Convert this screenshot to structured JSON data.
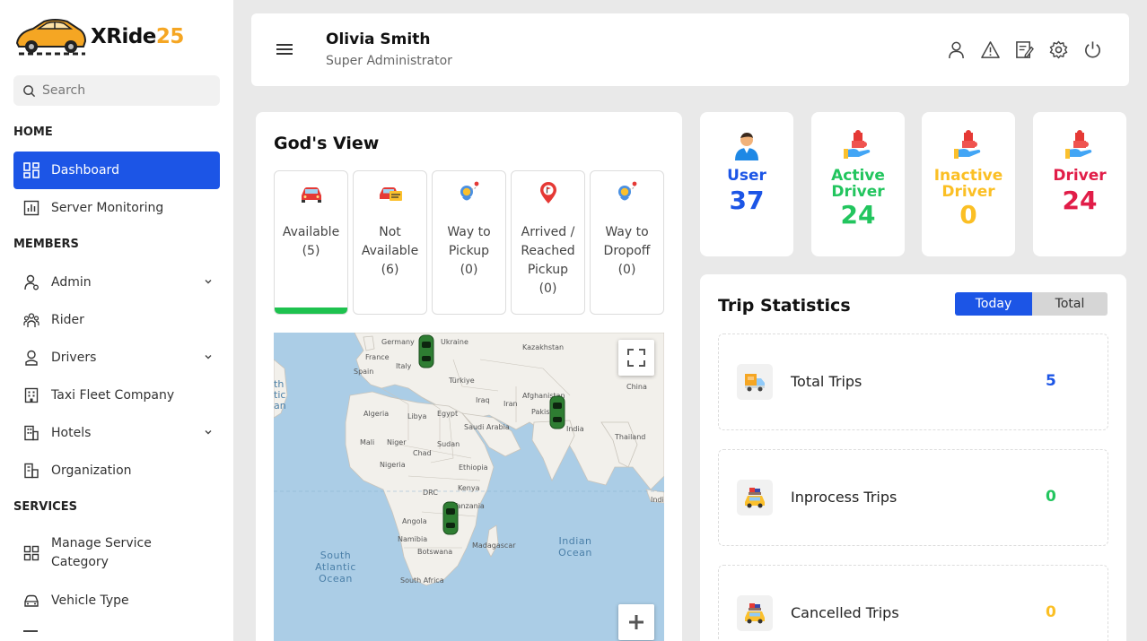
{
  "brand": {
    "name_main": "XRide",
    "name_num": "25",
    "accent": "#f5a623"
  },
  "search": {
    "placeholder": "Search"
  },
  "sidebar": {
    "sections": {
      "home": "HOME",
      "members": "MEMBERS",
      "services": "SERVICES"
    },
    "items": [
      {
        "label": "Dashboard",
        "icon": "dashboard-icon",
        "active": true
      },
      {
        "label": "Server Monitoring",
        "icon": "chart-icon"
      },
      {
        "label": "Admin",
        "icon": "user-gear-icon",
        "has_submenu": true
      },
      {
        "label": "Rider",
        "icon": "users-icon"
      },
      {
        "label": "Drivers",
        "icon": "driver-icon",
        "has_submenu": true
      },
      {
        "label": "Taxi Fleet Company",
        "icon": "building-icon"
      },
      {
        "label": "Hotels",
        "icon": "hotel-icon",
        "has_submenu": true
      },
      {
        "label": "Organization",
        "icon": "organization-icon"
      },
      {
        "label": "Manage Service Category",
        "icon": "grid-icon"
      },
      {
        "label": "Vehicle Type",
        "icon": "car-icon"
      }
    ]
  },
  "header": {
    "user_name": "Olivia Smith",
    "user_role": "Super Administrator",
    "icons": [
      "profile-icon",
      "alert-icon",
      "edit-icon",
      "settings-icon",
      "power-icon"
    ]
  },
  "gods_view": {
    "title": "God's View",
    "statuses": [
      {
        "label": "Available",
        "count": "(5)",
        "icon": "available-car-icon",
        "selected": true
      },
      {
        "label": "Not Available",
        "count": "(6)",
        "icon": "unavailable-car-icon"
      },
      {
        "label": "Way to Pickup",
        "count": "(0)",
        "icon": "pickup-route-icon"
      },
      {
        "label": "Arrived / Reached Pickup",
        "count": "(0)",
        "icon": "pin-flag-icon"
      },
      {
        "label": "Way to Dropoff",
        "count": "(0)",
        "icon": "dropoff-route-icon"
      }
    ],
    "map": {
      "labels": [
        "Germany",
        "Ukraine",
        "Kazakhstan",
        "France",
        "Spain",
        "Italy",
        "Türkiye",
        "Afghanistan",
        "China",
        "Iraq",
        "Iran",
        "Pakistan",
        "India",
        "Algeria",
        "Libya",
        "Egypt",
        "Saudi Arabia",
        "Thailand",
        "Mali",
        "Niger",
        "Sudan",
        "Chad",
        "Nigeria",
        "Ethiopia",
        "Kenya",
        "DRC",
        "Tanzania",
        "Angola",
        "Namibia",
        "Botswana",
        "Madagascar",
        "South Africa",
        "Indi"
      ],
      "oceans": [
        "South Atlantic Ocean",
        "Indian Ocean"
      ],
      "edge_text": "th tic an"
    }
  },
  "stats": [
    {
      "label_1": "User",
      "label_2": "",
      "value": "37",
      "color": "#1c55e6",
      "icon": "user-avatar-icon"
    },
    {
      "label_1": "Active",
      "label_2": "Driver",
      "value": "24",
      "color": "#22c55e",
      "icon": "puzzle-hand-icon"
    },
    {
      "label_1": "Inactive",
      "label_2": "Driver",
      "value": "0",
      "color": "#fbbf24",
      "icon": "puzzle-hand-icon"
    },
    {
      "label_1": "Driver",
      "label_2": "",
      "value": "24",
      "color": "#e11d48",
      "icon": "puzzle-hand-icon"
    }
  ],
  "trip_stats": {
    "title": "Trip Statistics",
    "tabs": [
      "Today",
      "Total"
    ],
    "rows": [
      {
        "label": "Total Trips",
        "value": "5",
        "color": "#1c55e6",
        "icon": "delivery-truck-icon"
      },
      {
        "label": "Inprocess Trips",
        "value": "0",
        "color": "#22c55e",
        "icon": "loaded-taxi-icon"
      },
      {
        "label": "Cancelled Trips",
        "value": "0",
        "color": "#fbbf24",
        "icon": "loaded-taxi-icon"
      }
    ]
  }
}
